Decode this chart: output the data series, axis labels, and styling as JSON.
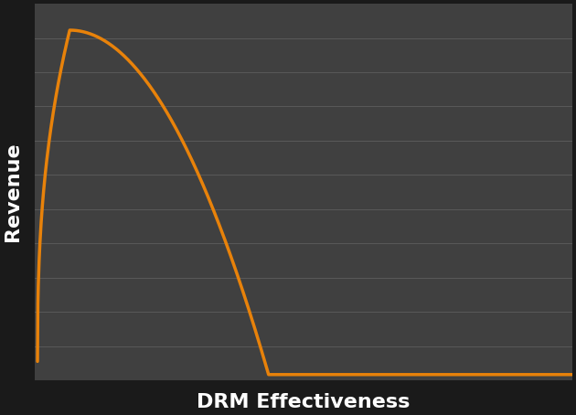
{
  "plot_bg_color": "#404040",
  "outer_bg_color": "#1a1a1a",
  "line_color": "#e8820a",
  "line_width": 2.5,
  "grid_color": "#606060",
  "grid_alpha": 0.8,
  "xlabel": "DRM Effectiveness",
  "ylabel": "Revenue",
  "xlabel_fontsize": 16,
  "ylabel_fontsize": 16,
  "xlabel_color": "#ffffff",
  "ylabel_color": "#ffffff",
  "xlabel_fontweight": "bold",
  "ylabel_fontweight": "bold",
  "xlim": [
    0,
    1
  ],
  "ylim": [
    0,
    1
  ],
  "n_hgridlines": 10
}
